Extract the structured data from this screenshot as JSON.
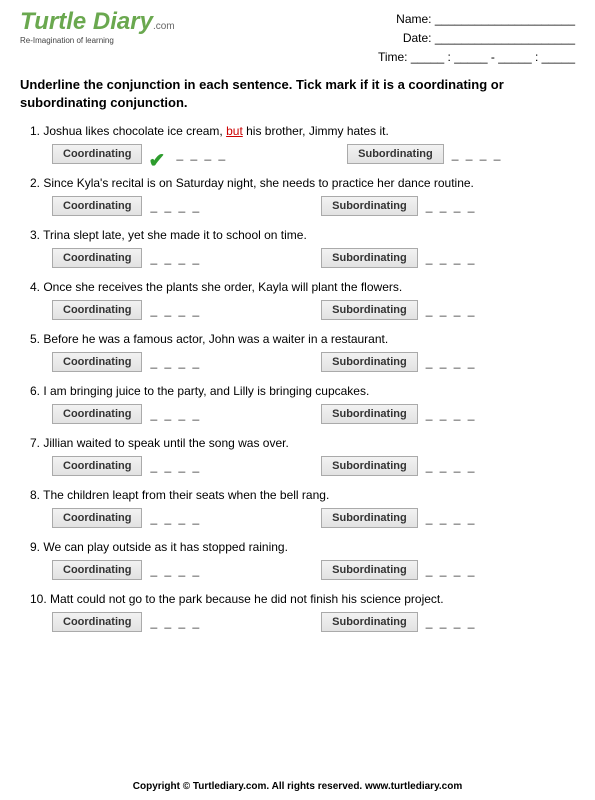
{
  "logo": {
    "main": "Turtle Diary",
    "com": ".com",
    "tagline": "Re-Imagination of learning"
  },
  "info": {
    "name_label": "Name: _____________________",
    "date_label": "Date: _____________________",
    "time_label": "Time: _____ : _____ - _____ : _____"
  },
  "instructions": "Underline the conjunction in each sentence. Tick mark if it is a coordinating or subordinating conjunction.",
  "buttons": {
    "coord": "Coordinating",
    "subord": "Subordinating"
  },
  "dashes": "_  _  _  _",
  "checkmark": "✔",
  "questions": [
    {
      "num": "1.",
      "pre": "Joshua likes chocolate ice cream, ",
      "u": "but",
      "post": " his brother, Jimmy hates it.",
      "checked": true
    },
    {
      "num": "2.",
      "pre": "Since Kyla's recital is on Saturday night, she needs to practice her dance routine.",
      "u": "",
      "post": "",
      "checked": false
    },
    {
      "num": "3.",
      "pre": "Trina slept late, yet she made it to school on time.",
      "u": "",
      "post": "",
      "checked": false
    },
    {
      "num": "4.",
      "pre": "Once she receives the plants she order, Kayla will plant the flowers.",
      "u": "",
      "post": "",
      "checked": false
    },
    {
      "num": "5.",
      "pre": "Before he was a famous actor, John was a waiter in a restaurant.",
      "u": "",
      "post": "",
      "checked": false
    },
    {
      "num": "6.",
      "pre": "I am bringing juice to the party, and Lilly is bringing cupcakes.",
      "u": "",
      "post": "",
      "checked": false
    },
    {
      "num": "7.",
      "pre": "Jillian waited to speak until the song was over.",
      "u": "",
      "post": "",
      "checked": false
    },
    {
      "num": "8.",
      "pre": "The children leapt from their seats when the bell rang.",
      "u": "",
      "post": "",
      "checked": false
    },
    {
      "num": "9.",
      "pre": "We can play outside as it has stopped raining.",
      "u": "",
      "post": "",
      "checked": false
    },
    {
      "num": "10.",
      "pre": "Matt could not go to the park because he did not finish his science project.",
      "u": "",
      "post": "",
      "checked": false
    }
  ],
  "footer": "Copyright © Turtlediary.com. All rights reserved. www.turtlediary.com"
}
